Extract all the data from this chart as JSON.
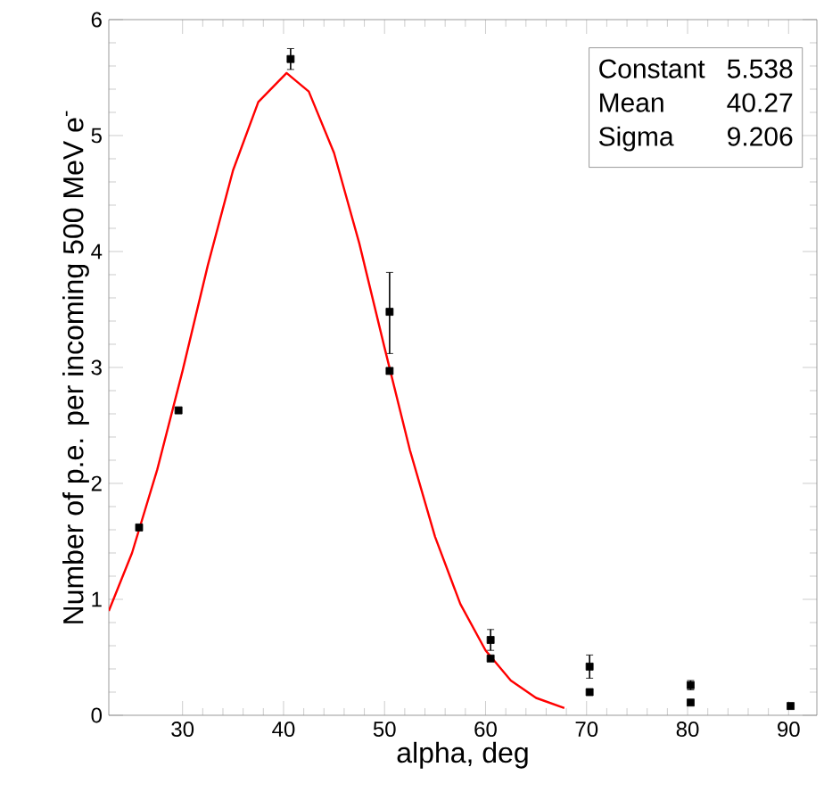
{
  "chart_data": {
    "type": "scatter",
    "xlabel": "alpha, deg",
    "ylabel": "Number of p.e. per incoming 500 MeV e$^{-}$",
    "xlim": [
      22.7,
      92.8
    ],
    "ylim": [
      0,
      6
    ],
    "xticks": [
      30,
      40,
      50,
      60,
      70,
      80,
      90
    ],
    "yticks": [
      0,
      1,
      2,
      3,
      4,
      5,
      6
    ],
    "annotations": [
      "Constant",
      "5.538",
      "Mean",
      "40.27",
      "Sigma",
      "9.206"
    ],
    "series": [
      {
        "marker": "square",
        "color": "#000000",
        "x": [
          25.7,
          29.6,
          40.7,
          50.5,
          50.5,
          60.5,
          60.5,
          70.3,
          70.3,
          80.3,
          80.3,
          90.2
        ],
        "values": [
          1.62,
          2.63,
          5.66,
          3.48,
          2.97,
          0.65,
          0.49,
          0.42,
          0.2,
          0.26,
          0.11,
          0.08
        ],
        "errors": [
          null,
          null,
          0.09,
          [
            3.12,
            3.82
          ],
          null,
          [
            0.56,
            0.74
          ],
          null,
          [
            0.32,
            0.52
          ],
          null,
          0.04,
          null,
          null
        ]
      },
      {
        "type": "line",
        "marker": "none",
        "line_style": "solid",
        "color": "#ff0000",
        "x": [
          22.7,
          25,
          27.5,
          30,
          32.5,
          35,
          37.5,
          40.3,
          42.5,
          45,
          47.5,
          50,
          52.5,
          55,
          57.5,
          60,
          62.5,
          65,
          67.8
        ],
        "values": [
          0.9,
          1.4,
          2.12,
          2.97,
          3.88,
          4.7,
          5.29,
          5.54,
          5.38,
          4.85,
          4.07,
          3.17,
          2.29,
          1.54,
          0.96,
          0.56,
          0.3,
          0.15,
          0.063
        ]
      }
    ]
  }
}
